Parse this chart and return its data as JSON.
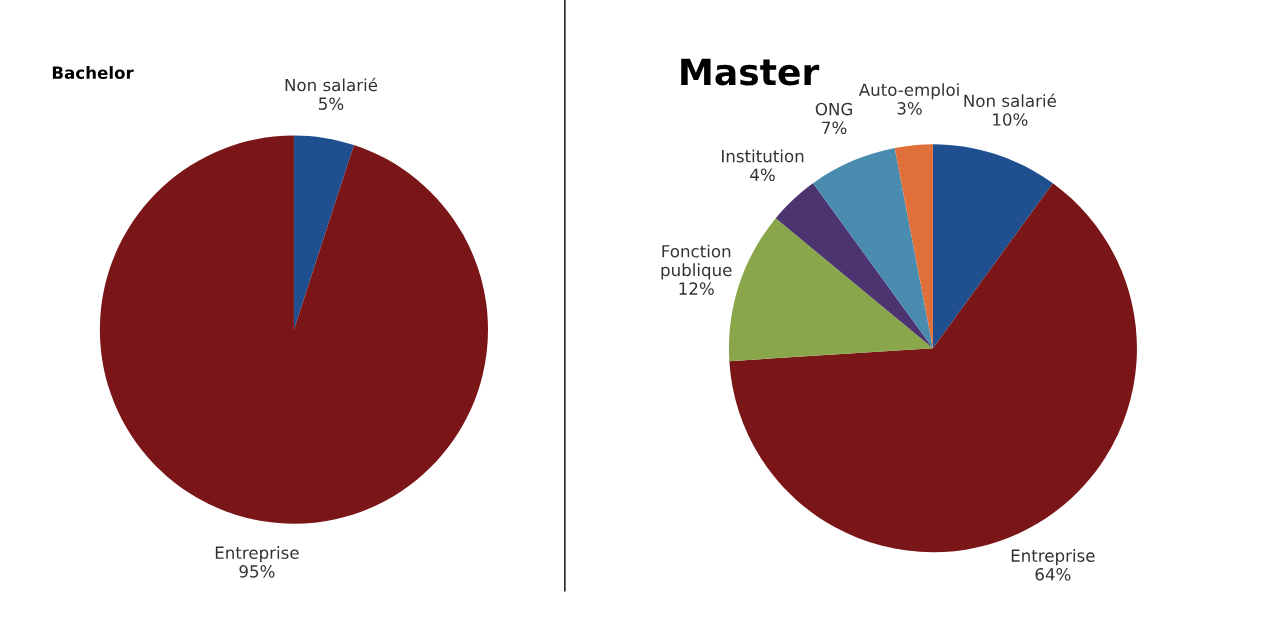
{
  "chart_data": [
    {
      "type": "pie",
      "title": "Bachelor",
      "categories": [
        "Non salarié",
        "Entreprise"
      ],
      "values": [
        5,
        95
      ],
      "value_labels": [
        "5%",
        "95%"
      ],
      "colors": [
        "#1f4f8f",
        "#7a1518"
      ]
    },
    {
      "type": "pie",
      "title": "Master",
      "categories": [
        "Non salarié",
        "Entreprise",
        "Fonction publique",
        "Institution",
        "ONG",
        "Auto-emploi"
      ],
      "values": [
        10,
        64,
        12,
        4,
        7,
        3
      ],
      "value_labels": [
        "10%",
        "64%",
        "12%",
        "4%",
        "7%",
        "3%"
      ],
      "colors": [
        "#1f4f8f",
        "#7a1518",
        "#8aa64a",
        "#4b3470",
        "#4a8bb0",
        "#e0703a"
      ]
    }
  ]
}
